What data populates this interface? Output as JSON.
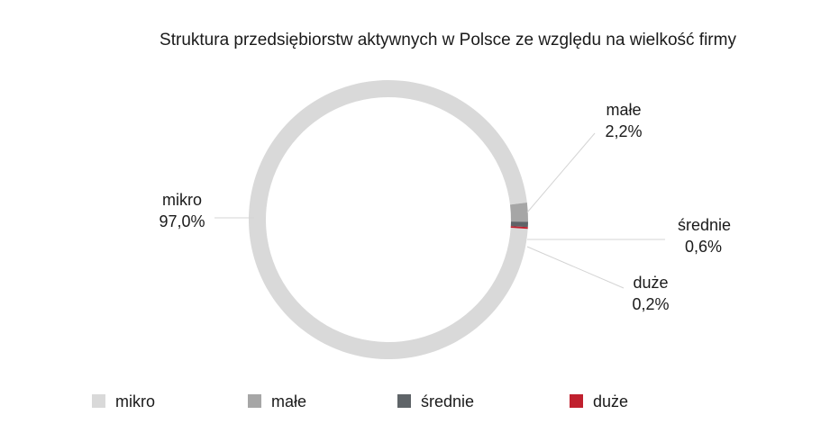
{
  "chart_data": {
    "type": "pie",
    "variant": "donut",
    "title": "Struktura przedsiębiorstw aktywnych w Polsce ze względu na wielkość firmy",
    "categories": [
      "mikro",
      "małe",
      "średnie",
      "duże"
    ],
    "values": [
      97.0,
      2.2,
      0.6,
      0.2
    ],
    "value_labels": [
      "97,0%",
      "2,2%",
      "0,6%",
      "0,2%"
    ],
    "colors": [
      "#d9d9d9",
      "#a6a6a6",
      "#5f6468",
      "#c0202e"
    ],
    "legend_position": "bottom"
  }
}
